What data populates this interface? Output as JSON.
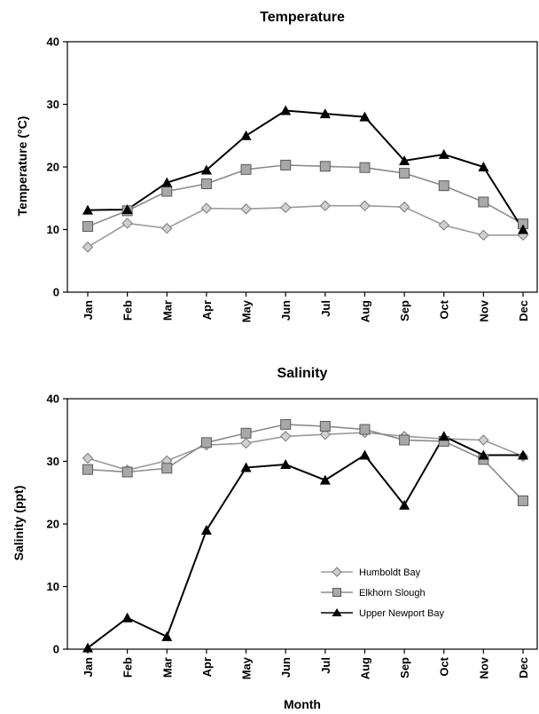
{
  "chart_data": [
    {
      "type": "line",
      "title": "Temperature",
      "xlabel": "",
      "ylabel": "Temperature (°C)",
      "ylim": [
        0,
        40
      ],
      "yticks": [
        "0",
        "10",
        "20",
        "30",
        "40"
      ],
      "categories": [
        "Jan",
        "Feb",
        "Mar",
        "Apr",
        "May",
        "Jun",
        "Jul",
        "Aug",
        "Sep",
        "Oct",
        "Nov",
        "Dec"
      ],
      "grid": false,
      "series": [
        {
          "name": "Humboldt Bay",
          "marker": "diamond",
          "color": "#9a9a9a",
          "marker_fill": "#cfcfcf",
          "values": [
            7.2,
            11.0,
            10.2,
            13.4,
            13.3,
            13.5,
            13.8,
            13.8,
            13.6,
            10.7,
            9.1,
            9.1
          ]
        },
        {
          "name": "Elkhorn Slough",
          "marker": "square",
          "color": "#8a8a8a",
          "marker_fill": "#a8a8a8",
          "values": [
            10.5,
            13.0,
            16.1,
            17.3,
            19.6,
            20.3,
            20.1,
            19.9,
            19.0,
            17.0,
            14.4,
            10.9
          ]
        },
        {
          "name": "Upper Newport Bay",
          "marker": "triangle",
          "color": "#000000",
          "marker_fill": "#000000",
          "values": [
            13.1,
            13.2,
            17.5,
            19.5,
            25.0,
            29.0,
            28.5,
            28.0,
            21.0,
            22.0,
            20.0,
            10.0
          ]
        }
      ]
    },
    {
      "type": "line",
      "title": "Salinity",
      "xlabel": "Month",
      "ylabel": "Salinity (ppt)",
      "ylim": [
        0,
        40
      ],
      "yticks": [
        "0",
        "10",
        "20",
        "30",
        "40"
      ],
      "categories": [
        "Jan",
        "Feb",
        "Mar",
        "Apr",
        "May",
        "Jun",
        "Jul",
        "Aug",
        "Sep",
        "Oct",
        "Nov",
        "Dec"
      ],
      "grid": false,
      "legend_placement": "lower-right",
      "series": [
        {
          "name": "Humboldt Bay",
          "marker": "diamond",
          "color": "#9a9a9a",
          "marker_fill": "#cfcfcf",
          "values": [
            30.5,
            28.6,
            30.1,
            32.6,
            32.9,
            34.0,
            34.3,
            34.6,
            34.0,
            33.6,
            33.4,
            30.8
          ]
        },
        {
          "name": "Elkhorn Slough",
          "marker": "square",
          "color": "#8a8a8a",
          "marker_fill": "#a8a8a8",
          "values": [
            28.7,
            28.3,
            28.9,
            33.0,
            34.5,
            35.9,
            35.6,
            35.1,
            33.4,
            33.2,
            30.3,
            23.7
          ]
        },
        {
          "name": "Upper Newport Bay",
          "marker": "triangle",
          "color": "#000000",
          "marker_fill": "#000000",
          "values": [
            0.2,
            5.0,
            2.0,
            19.0,
            29.0,
            29.5,
            27.0,
            31.0,
            23.0,
            34.0,
            31.0,
            31.0
          ]
        }
      ]
    }
  ]
}
